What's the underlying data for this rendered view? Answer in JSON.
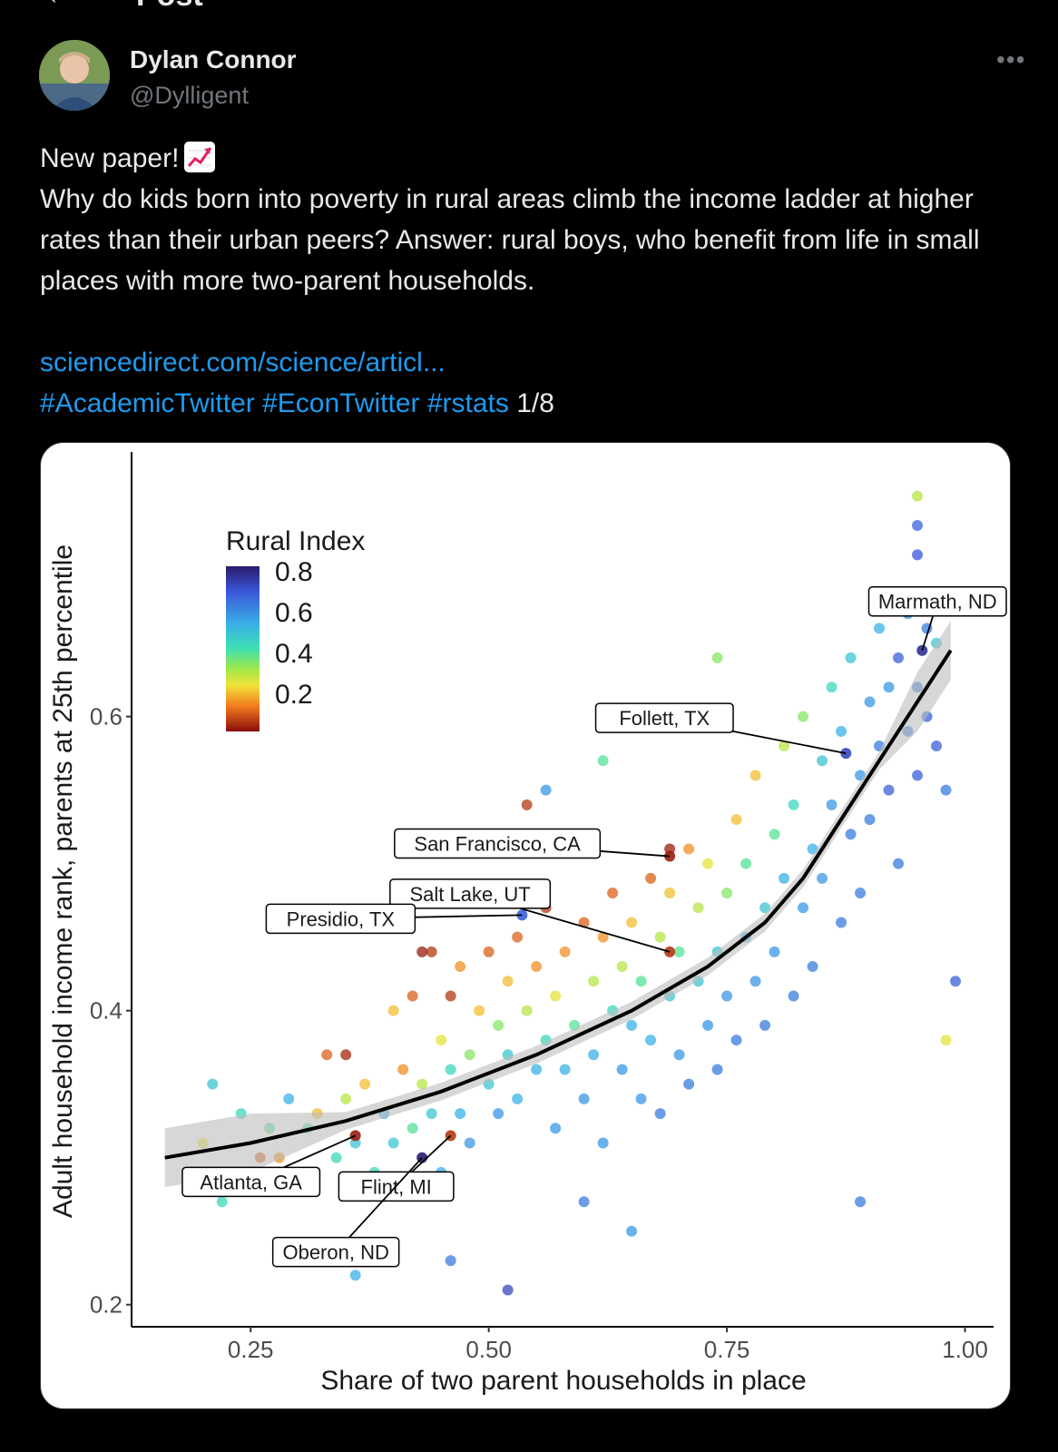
{
  "header": {
    "title": "Post",
    "back_icon": "back-arrow-icon"
  },
  "author": {
    "name": "Dylan Connor",
    "handle": "@Dylligent"
  },
  "tweet": {
    "line1": "New paper!",
    "line1_icon": "chart-increasing-icon",
    "body": "Why do kids born into poverty in rural areas climb the income ladder at higher rates than their urban peers? Answer: rural boys, who benefit from life in small places with more two-parent households.",
    "link": "sciencedirect.com/science/articl...",
    "hashtags": [
      "#AcademicTwitter",
      "#EconTwitter",
      "#rstats"
    ],
    "thread_count": "1/8"
  },
  "colors": {
    "background": "#000000",
    "link": "#1d9bf0",
    "text": "#e7e9ea",
    "muted": "#71767b"
  },
  "chart_data": {
    "type": "scatter",
    "xlabel": "Share of two parent households in place",
    "ylabel": "Adult household income rank, parents at 25th percentile",
    "xlim": [
      0.125,
      1.03
    ],
    "ylim": [
      0.185,
      0.78
    ],
    "x_ticks": [
      "0.25",
      "0.50",
      "0.75",
      "1.00"
    ],
    "y_ticks": [
      "0.2",
      "0.4",
      "0.6"
    ],
    "legend": {
      "title": "Rural Index",
      "ticks": [
        "0.8",
        "0.6",
        "0.4",
        "0.2"
      ],
      "placement": "top-left",
      "colorscale": "jet-reversed"
    },
    "trend_line": {
      "x": [
        0.16,
        0.25,
        0.35,
        0.45,
        0.55,
        0.65,
        0.73,
        0.79,
        0.83,
        0.87,
        0.91,
        0.95,
        0.985
      ],
      "y": [
        0.3,
        0.31,
        0.325,
        0.345,
        0.37,
        0.4,
        0.43,
        0.46,
        0.49,
        0.53,
        0.57,
        0.61,
        0.645
      ]
    },
    "labeled_points": [
      {
        "label": "Marmath, ND",
        "x": 0.955,
        "y": 0.645,
        "rural": 0.8
      },
      {
        "label": "Follett, TX",
        "x": 0.875,
        "y": 0.575,
        "rural": 0.75
      },
      {
        "label": "San Francisco, CA",
        "x": 0.69,
        "y": 0.505,
        "rural": 0.02
      },
      {
        "label": "Salt Lake, UT",
        "x": 0.69,
        "y": 0.44,
        "rural": 0.05
      },
      {
        "label": "Presidio, TX",
        "x": 0.535,
        "y": 0.465,
        "rural": 0.7
      },
      {
        "label": "Atlanta, GA",
        "x": 0.36,
        "y": 0.315,
        "rural": 0.02
      },
      {
        "label": "Flint, MI",
        "x": 0.46,
        "y": 0.315,
        "rural": 0.05
      },
      {
        "label": "Oberon, ND",
        "x": 0.43,
        "y": 0.3,
        "rural": 0.85
      }
    ],
    "scatter_points": [
      [
        0.2,
        0.31,
        0.25
      ],
      [
        0.21,
        0.35,
        0.5
      ],
      [
        0.22,
        0.27,
        0.45
      ],
      [
        0.23,
        0.29,
        0.2
      ],
      [
        0.24,
        0.33,
        0.45
      ],
      [
        0.25,
        0.28,
        0.4
      ],
      [
        0.26,
        0.3,
        0.1
      ],
      [
        0.27,
        0.32,
        0.4
      ],
      [
        0.28,
        0.3,
        0.15
      ],
      [
        0.29,
        0.34,
        0.55
      ],
      [
        0.3,
        0.29,
        0.3
      ],
      [
        0.31,
        0.32,
        0.4
      ],
      [
        0.32,
        0.33,
        0.2
      ],
      [
        0.33,
        0.37,
        0.1
      ],
      [
        0.34,
        0.3,
        0.45
      ],
      [
        0.35,
        0.34,
        0.3
      ],
      [
        0.36,
        0.31,
        0.5
      ],
      [
        0.37,
        0.35,
        0.2
      ],
      [
        0.38,
        0.29,
        0.45
      ],
      [
        0.39,
        0.33,
        0.55
      ],
      [
        0.4,
        0.4,
        0.2
      ],
      [
        0.4,
        0.31,
        0.5
      ],
      [
        0.41,
        0.36,
        0.15
      ],
      [
        0.42,
        0.32,
        0.4
      ],
      [
        0.42,
        0.41,
        0.1
      ],
      [
        0.43,
        0.35,
        0.3
      ],
      [
        0.44,
        0.44,
        0.05
      ],
      [
        0.44,
        0.33,
        0.5
      ],
      [
        0.45,
        0.38,
        0.25
      ],
      [
        0.45,
        0.29,
        0.55
      ],
      [
        0.46,
        0.36,
        0.45
      ],
      [
        0.46,
        0.41,
        0.05
      ],
      [
        0.47,
        0.33,
        0.55
      ],
      [
        0.47,
        0.43,
        0.15
      ],
      [
        0.48,
        0.37,
        0.35
      ],
      [
        0.48,
        0.31,
        0.6
      ],
      [
        0.49,
        0.4,
        0.2
      ],
      [
        0.5,
        0.35,
        0.5
      ],
      [
        0.5,
        0.44,
        0.1
      ],
      [
        0.51,
        0.33,
        0.6
      ],
      [
        0.51,
        0.39,
        0.35
      ],
      [
        0.52,
        0.42,
        0.2
      ],
      [
        0.52,
        0.37,
        0.5
      ],
      [
        0.53,
        0.45,
        0.1
      ],
      [
        0.53,
        0.34,
        0.55
      ],
      [
        0.54,
        0.4,
        0.3
      ],
      [
        0.55,
        0.36,
        0.55
      ],
      [
        0.55,
        0.43,
        0.15
      ],
      [
        0.56,
        0.47,
        0.05
      ],
      [
        0.56,
        0.38,
        0.45
      ],
      [
        0.57,
        0.32,
        0.6
      ],
      [
        0.57,
        0.41,
        0.25
      ],
      [
        0.58,
        0.44,
        0.15
      ],
      [
        0.58,
        0.36,
        0.55
      ],
      [
        0.59,
        0.39,
        0.4
      ],
      [
        0.6,
        0.46,
        0.1
      ],
      [
        0.6,
        0.34,
        0.6
      ],
      [
        0.61,
        0.42,
        0.3
      ],
      [
        0.61,
        0.37,
        0.55
      ],
      [
        0.62,
        0.45,
        0.15
      ],
      [
        0.62,
        0.31,
        0.6
      ],
      [
        0.63,
        0.4,
        0.45
      ],
      [
        0.63,
        0.48,
        0.1
      ],
      [
        0.64,
        0.36,
        0.6
      ],
      [
        0.64,
        0.43,
        0.3
      ],
      [
        0.65,
        0.39,
        0.55
      ],
      [
        0.65,
        0.46,
        0.2
      ],
      [
        0.66,
        0.34,
        0.6
      ],
      [
        0.66,
        0.42,
        0.4
      ],
      [
        0.67,
        0.49,
        0.1
      ],
      [
        0.67,
        0.38,
        0.55
      ],
      [
        0.68,
        0.45,
        0.3
      ],
      [
        0.68,
        0.33,
        0.65
      ],
      [
        0.69,
        0.41,
        0.5
      ],
      [
        0.69,
        0.48,
        0.2
      ],
      [
        0.7,
        0.37,
        0.6
      ],
      [
        0.7,
        0.44,
        0.4
      ],
      [
        0.71,
        0.51,
        0.15
      ],
      [
        0.71,
        0.35,
        0.65
      ],
      [
        0.72,
        0.42,
        0.5
      ],
      [
        0.72,
        0.47,
        0.3
      ],
      [
        0.73,
        0.39,
        0.6
      ],
      [
        0.73,
        0.5,
        0.25
      ],
      [
        0.74,
        0.36,
        0.65
      ],
      [
        0.74,
        0.44,
        0.5
      ],
      [
        0.75,
        0.48,
        0.35
      ],
      [
        0.75,
        0.41,
        0.6
      ],
      [
        0.76,
        0.53,
        0.2
      ],
      [
        0.76,
        0.38,
        0.65
      ],
      [
        0.77,
        0.45,
        0.55
      ],
      [
        0.77,
        0.5,
        0.4
      ],
      [
        0.78,
        0.42,
        0.6
      ],
      [
        0.78,
        0.56,
        0.2
      ],
      [
        0.79,
        0.47,
        0.5
      ],
      [
        0.79,
        0.39,
        0.65
      ],
      [
        0.8,
        0.52,
        0.4
      ],
      [
        0.8,
        0.44,
        0.6
      ],
      [
        0.81,
        0.49,
        0.55
      ],
      [
        0.81,
        0.58,
        0.3
      ],
      [
        0.82,
        0.41,
        0.65
      ],
      [
        0.82,
        0.54,
        0.45
      ],
      [
        0.83,
        0.47,
        0.6
      ],
      [
        0.83,
        0.6,
        0.35
      ],
      [
        0.84,
        0.51,
        0.55
      ],
      [
        0.84,
        0.43,
        0.65
      ],
      [
        0.85,
        0.57,
        0.5
      ],
      [
        0.85,
        0.49,
        0.6
      ],
      [
        0.86,
        0.62,
        0.45
      ],
      [
        0.86,
        0.54,
        0.6
      ],
      [
        0.87,
        0.46,
        0.65
      ],
      [
        0.87,
        0.59,
        0.55
      ],
      [
        0.88,
        0.52,
        0.65
      ],
      [
        0.88,
        0.64,
        0.5
      ],
      [
        0.89,
        0.56,
        0.6
      ],
      [
        0.89,
        0.48,
        0.65
      ],
      [
        0.9,
        0.61,
        0.6
      ],
      [
        0.9,
        0.53,
        0.65
      ],
      [
        0.91,
        0.58,
        0.65
      ],
      [
        0.91,
        0.66,
        0.55
      ],
      [
        0.92,
        0.55,
        0.7
      ],
      [
        0.92,
        0.62,
        0.6
      ],
      [
        0.93,
        0.5,
        0.65
      ],
      [
        0.93,
        0.64,
        0.7
      ],
      [
        0.94,
        0.59,
        0.65
      ],
      [
        0.94,
        0.67,
        0.6
      ],
      [
        0.95,
        0.56,
        0.7
      ],
      [
        0.95,
        0.62,
        0.65
      ],
      [
        0.96,
        0.6,
        0.7
      ],
      [
        0.96,
        0.66,
        0.65
      ],
      [
        0.97,
        0.58,
        0.7
      ],
      [
        0.97,
        0.65,
        0.5
      ],
      [
        0.98,
        0.55,
        0.65
      ],
      [
        0.95,
        0.73,
        0.7
      ],
      [
        0.95,
        0.71,
        0.72
      ],
      [
        0.95,
        0.75,
        0.3
      ],
      [
        0.99,
        0.42,
        0.7
      ],
      [
        0.89,
        0.27,
        0.65
      ],
      [
        0.52,
        0.21,
        0.75
      ],
      [
        0.46,
        0.23,
        0.65
      ],
      [
        0.36,
        0.22,
        0.55
      ],
      [
        0.54,
        0.54,
        0.05
      ],
      [
        0.43,
        0.44,
        0.02
      ],
      [
        0.35,
        0.37,
        0.03
      ],
      [
        0.6,
        0.27,
        0.65
      ],
      [
        0.65,
        0.25,
        0.6
      ],
      [
        0.98,
        0.38,
        0.25
      ],
      [
        0.74,
        0.64,
        0.35
      ],
      [
        0.69,
        0.51,
        0.02
      ],
      [
        0.62,
        0.57,
        0.4
      ],
      [
        0.56,
        0.55,
        0.6
      ]
    ]
  }
}
